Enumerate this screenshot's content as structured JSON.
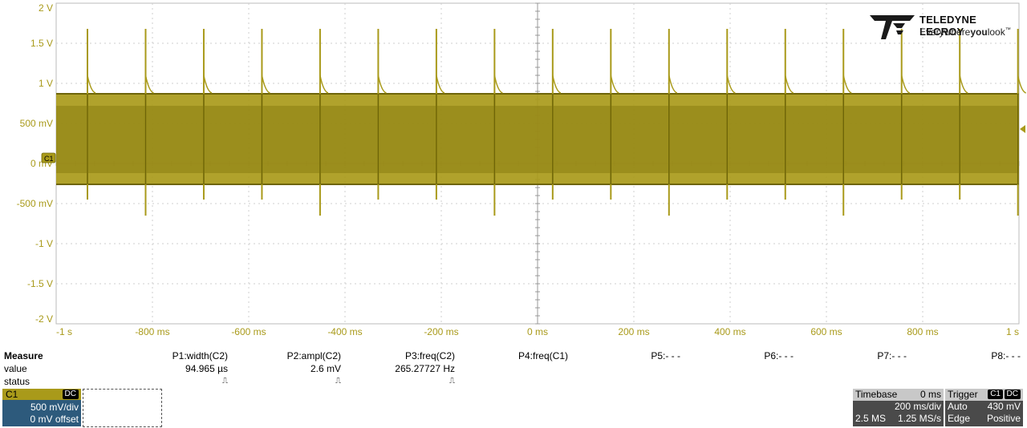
{
  "brand": {
    "name": "TELEDYNE LECROY",
    "tagline_pre": "Everywhere",
    "tagline_bold": "you",
    "tagline_post": "look",
    "tagline_mark": "™"
  },
  "colors": {
    "trace": "#a99a1a",
    "trace_dark": "#6e6509",
    "grid": "#cfcfcf",
    "channel_panel": "#2d5a7c"
  },
  "scope": {
    "y_labels": [
      "2 V",
      "1.5 V",
      "1 V",
      "500 mV",
      "0 mV",
      "-500 mV",
      "-1 V",
      "-1.5 V",
      "-2 V"
    ],
    "x_labels": [
      "-1 s",
      "-800 ms",
      "-600 ms",
      "-400 ms",
      "-200 ms",
      "0 ms",
      "200 ms",
      "400 ms",
      "600 ms",
      "800 ms",
      "1 s"
    ],
    "channel_marker": "C1"
  },
  "measure": {
    "title": "Measure",
    "row_value": "value",
    "row_status": "status",
    "params": [
      {
        "label": "P1:width(C2)",
        "value": "94.965 µs",
        "status": "⎍"
      },
      {
        "label": "P2:ampl(C2)",
        "value": "2.6 mV",
        "status": "⎍"
      },
      {
        "label": "P3:freq(C2)",
        "value": "265.27727 Hz",
        "status": "⎍"
      },
      {
        "label": "P4:freq(C1)",
        "value": "",
        "status": ""
      },
      {
        "label": "P5:- - -",
        "value": "",
        "status": ""
      },
      {
        "label": "P6:- - -",
        "value": "",
        "status": ""
      },
      {
        "label": "P7:- - -",
        "value": "",
        "status": ""
      },
      {
        "label": "P8:- - -",
        "value": "",
        "status": ""
      }
    ]
  },
  "channel": {
    "name": "C1",
    "coupling": "DC",
    "vdiv": "500 mV/div",
    "offset": "0 mV offset"
  },
  "timebase": {
    "title": "Timebase",
    "delay": "0 ms",
    "tdiv": "200 ms/div",
    "samples": "2.5 MS",
    "rate": "1.25 MS/s"
  },
  "trigger": {
    "title": "Trigger",
    "source": "C1",
    "coupling": "DC",
    "mode": "Auto",
    "level": "430 mV",
    "type": "Edge",
    "slope": "Positive"
  }
}
